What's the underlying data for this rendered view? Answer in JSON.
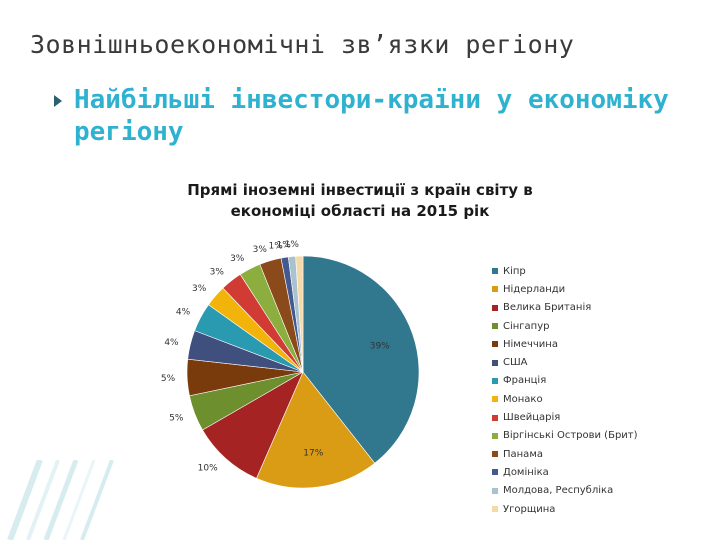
{
  "slide": {
    "title": "Зовнішньоекономічні зв’язки регіону",
    "subtitle": "Найбільші інвестори-країни у економіку регіону"
  },
  "colors": {
    "subtitle": "#2fb2d0",
    "title": "#3a3a3a",
    "bullet": "#2c5f6f"
  },
  "chart_data": {
    "type": "pie",
    "title": "Прямі іноземні інвестиції з країн світу в економіці області на 2015 рік",
    "legend_position": "right",
    "start": "top, clockwise",
    "slices": [
      {
        "name": "Кіпр",
        "value": 39,
        "label": "39%",
        "color": "#31788f"
      },
      {
        "name": "Нідерланди",
        "value": 17,
        "label": "17%",
        "color": "#d99c14"
      },
      {
        "name": "Велика Британія",
        "value": 10,
        "label": "10%",
        "color": "#a52423"
      },
      {
        "name": "Сінгапур",
        "value": 5,
        "label": "5%",
        "color": "#6d8f2e"
      },
      {
        "name": "Німеччина",
        "value": 5,
        "label": "5%",
        "color": "#7a3b0c"
      },
      {
        "name": "США",
        "value": 4,
        "label": "4%",
        "color": "#3f4f7e"
      },
      {
        "name": "Франція",
        "value": 4,
        "label": "4%",
        "color": "#2a9ab0"
      },
      {
        "name": "Монако",
        "value": 3,
        "label": "3%",
        "color": "#f2b40a"
      },
      {
        "name": "Швейцарія",
        "value": 3,
        "label": "3%",
        "color": "#d03b33"
      },
      {
        "name": "Віргінські Острови (Брит)",
        "value": 3,
        "label": "3%",
        "color": "#8cae3e"
      },
      {
        "name": "Панама",
        "value": 3,
        "label": "3%",
        "color": "#8a4a1a"
      },
      {
        "name": "Домініка",
        "value": 1,
        "label": "1%",
        "color": "#44598f"
      },
      {
        "name": "Молдова, Республіка",
        "value": 1,
        "label": "1%",
        "color": "#a9c2cf"
      },
      {
        "name": "Угорщина",
        "value": 1,
        "label": "1%",
        "color": "#f5d9a8"
      }
    ]
  }
}
